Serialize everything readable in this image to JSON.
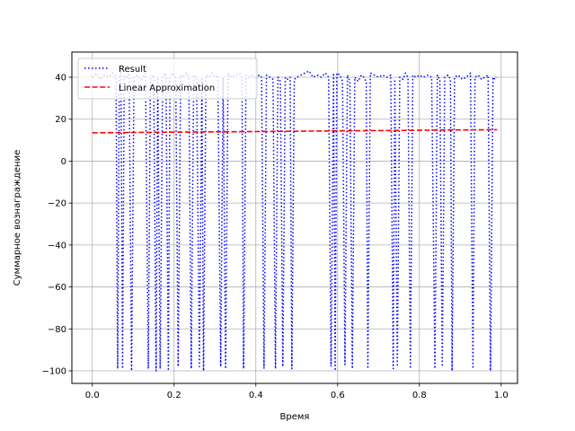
{
  "chart_data": {
    "type": "line",
    "xlabel": "Время",
    "ylabel": "Суммарное вознаграждение",
    "xlim": [
      -0.05,
      1.04
    ],
    "ylim": [
      -106,
      52
    ],
    "grid": true,
    "legend_position": "top-left",
    "x_ticks": [
      0.0,
      0.2,
      0.4,
      0.6,
      0.8,
      1.0
    ],
    "x_tick_labels": [
      "0.0",
      "0.2",
      "0.4",
      "0.6",
      "0.8",
      "1.0"
    ],
    "y_ticks": [
      -100,
      -80,
      -60,
      -40,
      -20,
      0,
      20,
      40
    ],
    "y_tick_labels": [
      "−100",
      "−80",
      "−60",
      "−40",
      "−20",
      "0",
      "20",
      "40"
    ],
    "series": [
      {
        "name": "Result",
        "color": "#0000ff",
        "style": "dotted",
        "points": [
          [
            0.0,
            40
          ],
          [
            0.01,
            42
          ],
          [
            0.02,
            39
          ],
          [
            0.03,
            41
          ],
          [
            0.04,
            40
          ],
          [
            0.05,
            42
          ],
          [
            0.058,
            40
          ],
          [
            0.062,
            -99
          ],
          [
            0.066,
            40
          ],
          [
            0.07,
            42
          ],
          [
            0.074,
            -99
          ],
          [
            0.078,
            41
          ],
          [
            0.085,
            40
          ],
          [
            0.09,
            42
          ],
          [
            0.096,
            -100
          ],
          [
            0.102,
            40
          ],
          [
            0.11,
            41
          ],
          [
            0.12,
            39
          ],
          [
            0.13,
            42
          ],
          [
            0.137,
            -99
          ],
          [
            0.142,
            40
          ],
          [
            0.15,
            41
          ],
          [
            0.156,
            -100
          ],
          [
            0.16,
            40
          ],
          [
            0.166,
            -99
          ],
          [
            0.172,
            41
          ],
          [
            0.18,
            42
          ],
          [
            0.186,
            -100
          ],
          [
            0.19,
            40
          ],
          [
            0.196,
            42
          ],
          [
            0.204,
            40
          ],
          [
            0.21,
            -98
          ],
          [
            0.216,
            41
          ],
          [
            0.222,
            40
          ],
          [
            0.23,
            42
          ],
          [
            0.236,
            40
          ],
          [
            0.242,
            -99
          ],
          [
            0.248,
            41
          ],
          [
            0.255,
            40
          ],
          [
            0.262,
            -98
          ],
          [
            0.268,
            40
          ],
          [
            0.272,
            -100
          ],
          [
            0.278,
            41
          ],
          [
            0.286,
            40
          ],
          [
            0.293,
            42
          ],
          [
            0.3,
            40
          ],
          [
            0.307,
            41
          ],
          [
            0.314,
            -98
          ],
          [
            0.32,
            40
          ],
          [
            0.326,
            -99
          ],
          [
            0.332,
            42
          ],
          [
            0.34,
            40
          ],
          [
            0.35,
            41
          ],
          [
            0.36,
            42
          ],
          [
            0.366,
            40
          ],
          [
            0.37,
            -99
          ],
          [
            0.376,
            41
          ],
          [
            0.384,
            40
          ],
          [
            0.392,
            41
          ],
          [
            0.4,
            39
          ],
          [
            0.408,
            41
          ],
          [
            0.414,
            40
          ],
          [
            0.42,
            -99
          ],
          [
            0.426,
            41
          ],
          [
            0.434,
            40
          ],
          [
            0.442,
            39
          ],
          [
            0.448,
            -99
          ],
          [
            0.454,
            40
          ],
          [
            0.46,
            38
          ],
          [
            0.466,
            -98
          ],
          [
            0.472,
            40
          ],
          [
            0.478,
            39
          ],
          [
            0.484,
            40
          ],
          [
            0.488,
            -99
          ],
          [
            0.494,
            39
          ],
          [
            0.5,
            40
          ],
          [
            0.51,
            41
          ],
          [
            0.52,
            42
          ],
          [
            0.53,
            43
          ],
          [
            0.54,
            40
          ],
          [
            0.55,
            41
          ],
          [
            0.56,
            40
          ],
          [
            0.57,
            42
          ],
          [
            0.578,
            40
          ],
          [
            0.584,
            -98
          ],
          [
            0.59,
            42
          ],
          [
            0.594,
            -100
          ],
          [
            0.598,
            42
          ],
          [
            0.606,
            41
          ],
          [
            0.612,
            38
          ],
          [
            0.618,
            -97
          ],
          [
            0.624,
            41
          ],
          [
            0.63,
            38
          ],
          [
            0.636,
            -99
          ],
          [
            0.642,
            40
          ],
          [
            0.65,
            38
          ],
          [
            0.658,
            41
          ],
          [
            0.664,
            40
          ],
          [
            0.67,
            38
          ],
          [
            0.674,
            -99
          ],
          [
            0.68,
            42
          ],
          [
            0.69,
            41
          ],
          [
            0.7,
            40
          ],
          [
            0.71,
            41
          ],
          [
            0.72,
            40
          ],
          [
            0.73,
            41
          ],
          [
            0.736,
            -99
          ],
          [
            0.74,
            39
          ],
          [
            0.746,
            -98
          ],
          [
            0.752,
            40
          ],
          [
            0.76,
            39
          ],
          [
            0.766,
            42
          ],
          [
            0.772,
            40
          ],
          [
            0.778,
            -99
          ],
          [
            0.784,
            41
          ],
          [
            0.792,
            40
          ],
          [
            0.8,
            41
          ],
          [
            0.81,
            40
          ],
          [
            0.82,
            41
          ],
          [
            0.83,
            40
          ],
          [
            0.838,
            -99
          ],
          [
            0.844,
            41
          ],
          [
            0.85,
            39
          ],
          [
            0.856,
            -98
          ],
          [
            0.862,
            40
          ],
          [
            0.87,
            41
          ],
          [
            0.876,
            39
          ],
          [
            0.88,
            -100
          ],
          [
            0.886,
            40
          ],
          [
            0.895,
            41
          ],
          [
            0.905,
            39
          ],
          [
            0.915,
            40
          ],
          [
            0.925,
            42
          ],
          [
            0.931,
            -99
          ],
          [
            0.936,
            40
          ],
          [
            0.944,
            41
          ],
          [
            0.952,
            39
          ],
          [
            0.96,
            40
          ],
          [
            0.968,
            41
          ],
          [
            0.974,
            -100
          ],
          [
            0.98,
            40
          ],
          [
            0.985,
            39
          ],
          [
            0.988,
            40
          ]
        ]
      },
      {
        "name": "Linear Approximation",
        "color": "#ff0000",
        "style": "dashed",
        "points": [
          [
            0.0,
            13.5
          ],
          [
            0.99,
            15.0
          ]
        ]
      }
    ]
  }
}
